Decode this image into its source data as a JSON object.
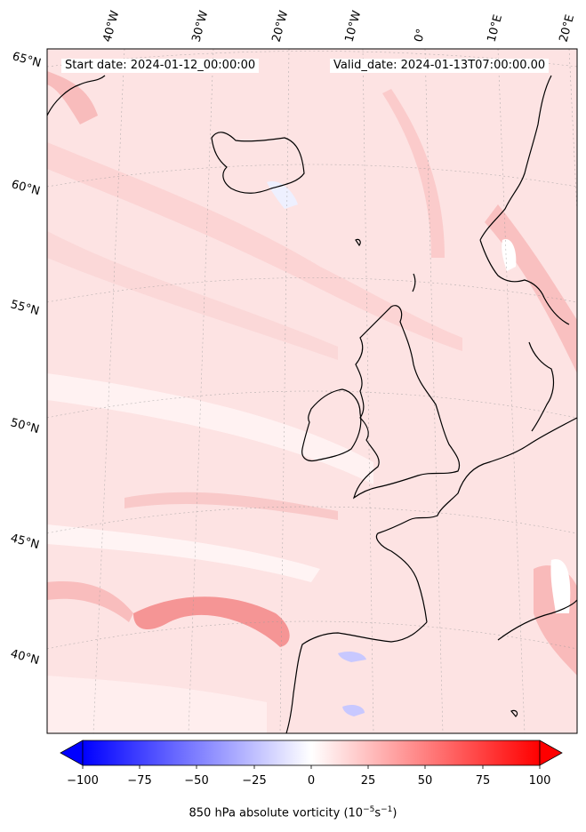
{
  "header": {
    "start_date": "Start date: 2024-01-12_00:00:00",
    "valid_date": "Valid_date: 2024-01-13T07:00:00.00"
  },
  "map": {
    "projection": "lambert-conformal",
    "extent": "North Atlantic / Western Europe",
    "field": "850 hPa absolute vorticity",
    "gridlines": true,
    "latitude_labels": [
      "65°N",
      "60°N",
      "55°N",
      "50°N",
      "45°N",
      "40°N"
    ],
    "longitude_labels": [
      "40°W",
      "30°W",
      "20°W",
      "10°W",
      "0°",
      "10°E",
      "20°E"
    ],
    "coastline_color": "#000000",
    "landmasses_shown": [
      "Iceland",
      "Ireland",
      "Great Britain",
      "Norway",
      "France",
      "Iberian Peninsula",
      "Denmark"
    ]
  },
  "colorbar": {
    "label_main": "850 hPa absolute vorticity (10",
    "label_exp1": "−5",
    "label_mid": "s",
    "label_exp2": "−1",
    "label_end": ")",
    "ticks": [
      "−100",
      "−75",
      "−50",
      "−25",
      "0",
      "25",
      "50",
      "75",
      "100"
    ],
    "min": -100,
    "max": 100,
    "extend": "both",
    "cmap": "bwr",
    "colors": {
      "negative": "#0000ff",
      "zero": "#ffffff",
      "positive": "#ff0000"
    }
  }
}
